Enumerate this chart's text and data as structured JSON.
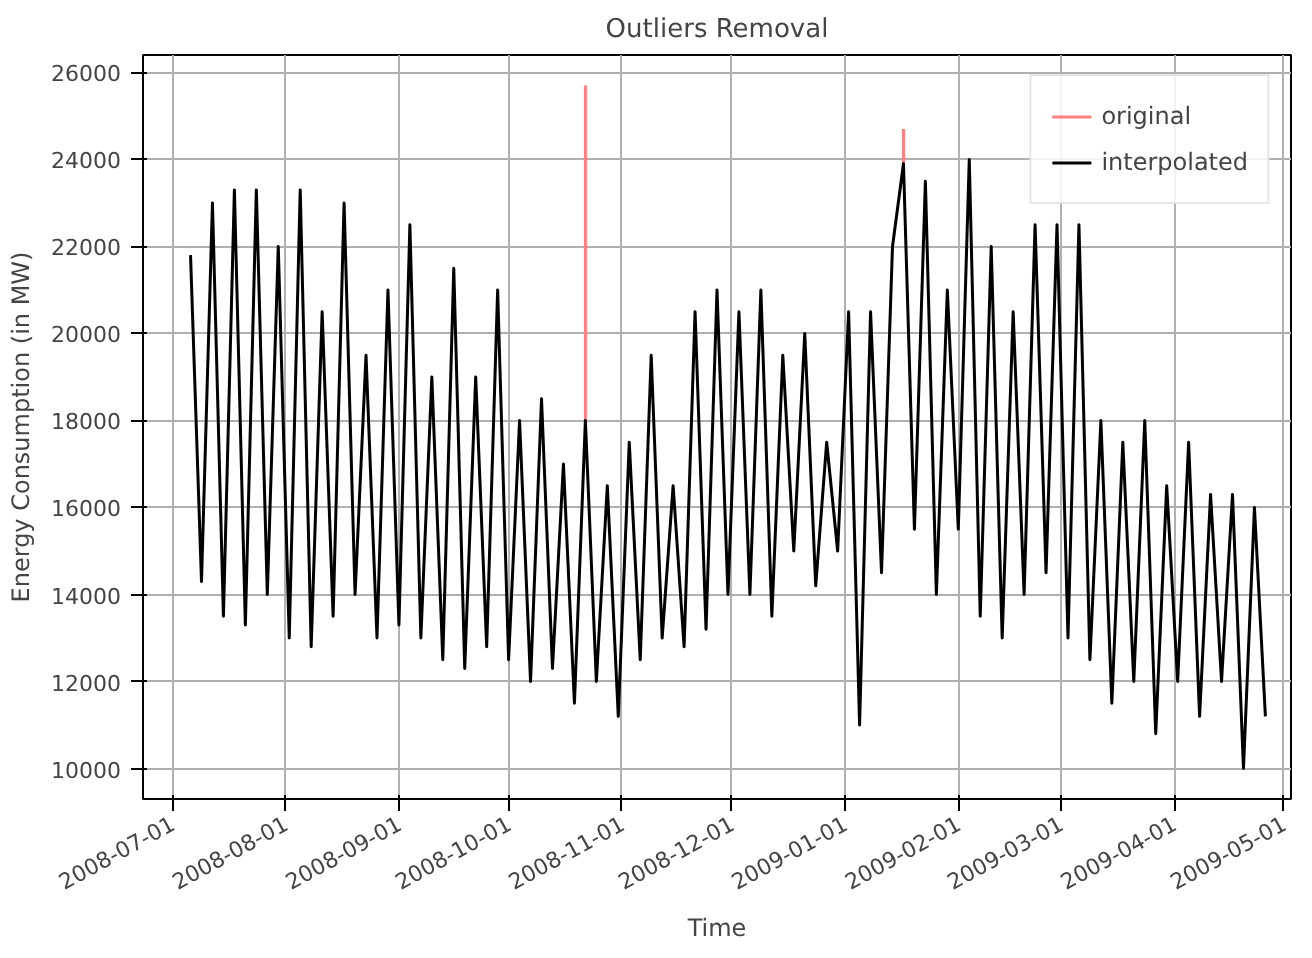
{
  "chart_data": {
    "type": "line",
    "title": "Outliers Removal",
    "xlabel": "Time",
    "ylabel": "Energy Consumption (in MW)",
    "x": [
      "2008-07-06",
      "2008-07-09",
      "2008-07-12",
      "2008-07-15",
      "2008-07-18",
      "2008-07-21",
      "2008-07-24",
      "2008-07-27",
      "2008-07-30",
      "2008-08-02",
      "2008-08-05",
      "2008-08-08",
      "2008-08-11",
      "2008-08-14",
      "2008-08-17",
      "2008-08-20",
      "2008-08-23",
      "2008-08-26",
      "2008-08-29",
      "2008-09-01",
      "2008-09-04",
      "2008-09-07",
      "2008-09-10",
      "2008-09-13",
      "2008-09-16",
      "2008-09-19",
      "2008-09-22",
      "2008-09-25",
      "2008-09-28",
      "2008-10-01",
      "2008-10-04",
      "2008-10-07",
      "2008-10-10",
      "2008-10-13",
      "2008-10-16",
      "2008-10-19",
      "2008-10-22",
      "2008-10-25",
      "2008-10-28",
      "2008-10-31",
      "2008-11-03",
      "2008-11-06",
      "2008-11-09",
      "2008-11-12",
      "2008-11-15",
      "2008-11-18",
      "2008-11-21",
      "2008-11-24",
      "2008-11-27",
      "2008-11-30",
      "2008-12-03",
      "2008-12-06",
      "2008-12-09",
      "2008-12-12",
      "2008-12-15",
      "2008-12-18",
      "2008-12-21",
      "2008-12-24",
      "2008-12-27",
      "2008-12-30",
      "2009-01-02",
      "2009-01-05",
      "2009-01-08",
      "2009-01-11",
      "2009-01-14",
      "2009-01-17",
      "2009-01-20",
      "2009-01-23",
      "2009-01-26",
      "2009-01-29",
      "2009-02-01",
      "2009-02-04",
      "2009-02-07",
      "2009-02-10",
      "2009-02-13",
      "2009-02-16",
      "2009-02-19",
      "2009-02-22",
      "2009-02-25",
      "2009-02-28",
      "2009-03-03",
      "2009-03-06",
      "2009-03-09",
      "2009-03-12",
      "2009-03-15",
      "2009-03-18",
      "2009-03-21",
      "2009-03-24",
      "2009-03-27",
      "2009-03-30",
      "2009-04-02",
      "2009-04-05",
      "2009-04-08",
      "2009-04-11",
      "2009-04-14",
      "2009-04-17",
      "2009-04-20",
      "2009-04-23",
      "2009-04-26"
    ],
    "series": [
      {
        "name": "original",
        "color": "#ff7f7f",
        "x": [
          "2008-10-22",
          "2008-10-22",
          "2008-12-01",
          "2009-01-17",
          "2009-01-17"
        ],
        "values": [
          18000,
          25700,
          null,
          23900,
          24700
        ]
      },
      {
        "name": "interpolated",
        "color": "#000000",
        "values": [
          21800,
          14300,
          23000,
          13500,
          23300,
          13300,
          23300,
          14000,
          22000,
          13000,
          23300,
          12800,
          20500,
          13500,
          23000,
          14000,
          19500,
          13000,
          21000,
          13300,
          22500,
          13000,
          19000,
          12500,
          21500,
          12300,
          19000,
          12800,
          21000,
          12500,
          18000,
          12000,
          18500,
          12300,
          17000,
          11500,
          18000,
          12000,
          16500,
          11200,
          17500,
          12500,
          19500,
          13000,
          16500,
          12800,
          20500,
          13200,
          21000,
          14000,
          20500,
          14000,
          21000,
          13500,
          19500,
          15000,
          20000,
          14200,
          17500,
          15000,
          20500,
          11000,
          20500,
          14500,
          22000,
          23900,
          15500,
          23500,
          14000,
          21000,
          15500,
          24000,
          13500,
          22000,
          13000,
          20500,
          14000,
          22500,
          14500,
          22500,
          13000,
          22500,
          12500,
          18000,
          11500,
          17500,
          12000,
          18000,
          10800,
          16500,
          12000,
          17500,
          11200,
          16300,
          12000,
          16300,
          10000,
          16000,
          11200
        ]
      }
    ],
    "xlim": [
      "2008-06-23",
      "2009-05-03"
    ],
    "xticks": [
      "2008-07-01",
      "2008-08-01",
      "2008-09-01",
      "2008-10-01",
      "2008-11-01",
      "2008-12-01",
      "2009-01-01",
      "2009-02-01",
      "2009-03-01",
      "2009-04-01",
      "2009-05-01"
    ],
    "ylim": [
      9300,
      26400
    ],
    "yticks": [
      10000,
      12000,
      14000,
      16000,
      18000,
      20000,
      22000,
      24000,
      26000
    ],
    "grid": true,
    "legend": "top right",
    "marker": "none",
    "line_style": "solid"
  }
}
